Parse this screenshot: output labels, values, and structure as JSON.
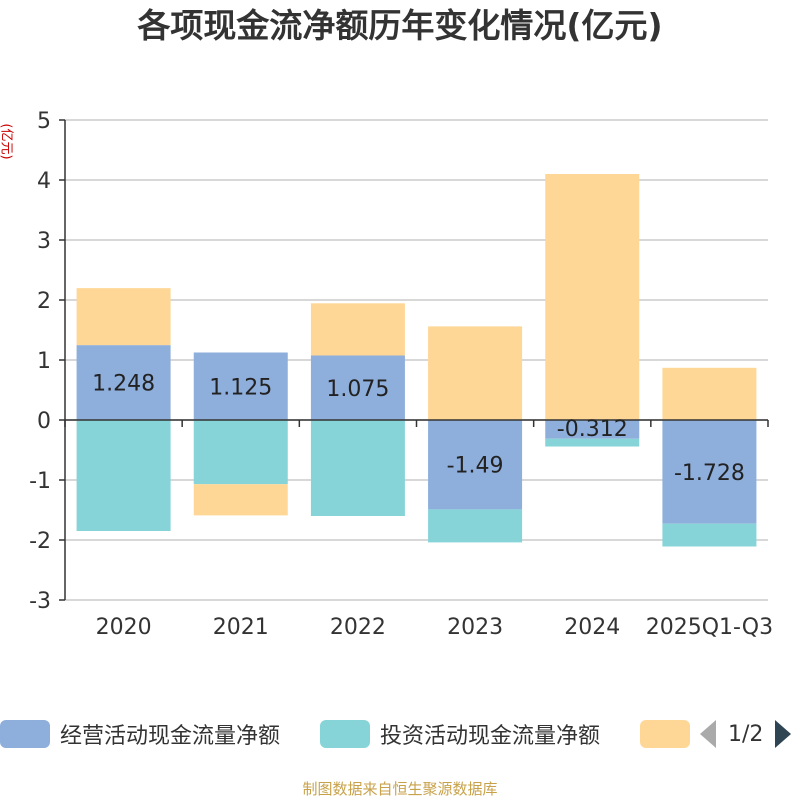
{
  "chart_data": {
    "type": "bar",
    "stacked": true,
    "title": "各项现金流净额历年变化情况(亿元)",
    "ylabel": "(亿元)",
    "ylim": [
      -3,
      5
    ],
    "yticks": [
      5,
      4,
      3,
      2,
      1,
      0,
      -1,
      -2,
      -3
    ],
    "categories": [
      "2020",
      "2021",
      "2022",
      "2023",
      "2024",
      "2025Q1-Q3"
    ],
    "series": [
      {
        "name": "经营活动现金流量净额",
        "color": "#8eaedb",
        "values": [
          1.248,
          1.125,
          1.075,
          -1.49,
          -0.312,
          -1.728
        ],
        "labels": [
          "1.248",
          "1.125",
          "1.075",
          "-1.49",
          "-0.312",
          "-1.728"
        ]
      },
      {
        "name": "投资活动现金流量净额",
        "color": "#86d4d8",
        "values": [
          -1.85,
          -1.07,
          -1.6,
          -0.55,
          -0.13,
          -0.38
        ]
      },
      {
        "name": "",
        "color": "#fed797",
        "values": [
          0.95,
          -0.52,
          0.87,
          1.56,
          4.1,
          0.87
        ]
      }
    ]
  },
  "legend": {
    "items": [
      {
        "label": "经营活动现金流量净额",
        "color": "#8eaedb"
      },
      {
        "label": "投资活动现金流量净额",
        "color": "#86d4d8"
      },
      {
        "label": "",
        "color": "#fed797"
      }
    ],
    "page": "1/2"
  },
  "source": "制图数据来自恒生聚源数据库"
}
